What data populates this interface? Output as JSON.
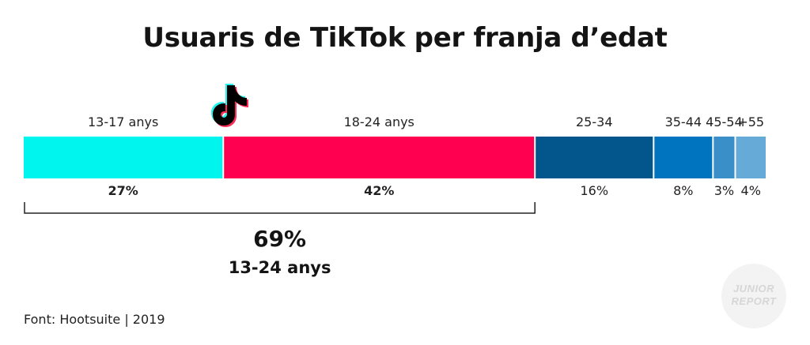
{
  "title": "Usuaris de TikTok per franja d’edat",
  "source": "Font: Hootsuite | 2019",
  "logo": {
    "line1": "JUNIOR",
    "line2": "REPORT"
  },
  "tiktok_icon": "tiktok-logo-icon",
  "chart_data": {
    "type": "bar",
    "orientation": "horizontal-stacked",
    "title": "Usuaris de TikTok per franja d’edat",
    "categories": [
      "13-17 anys",
      "18-24 anys",
      "25-34",
      "35-44",
      "45-54",
      "+55"
    ],
    "values": [
      27,
      42,
      16,
      8,
      3,
      4
    ],
    "value_labels": [
      "27%",
      "42%",
      "16%",
      "8%",
      "3%",
      "4%"
    ],
    "bold_labels": [
      true,
      true,
      false,
      false,
      false,
      false
    ],
    "colors": [
      "#00f5ee",
      "#ff0050",
      "#02568c",
      "#0074bf",
      "#3a8fc9",
      "#66aad8"
    ],
    "summary": {
      "value": "69%",
      "label": "13-24 anys"
    }
  }
}
